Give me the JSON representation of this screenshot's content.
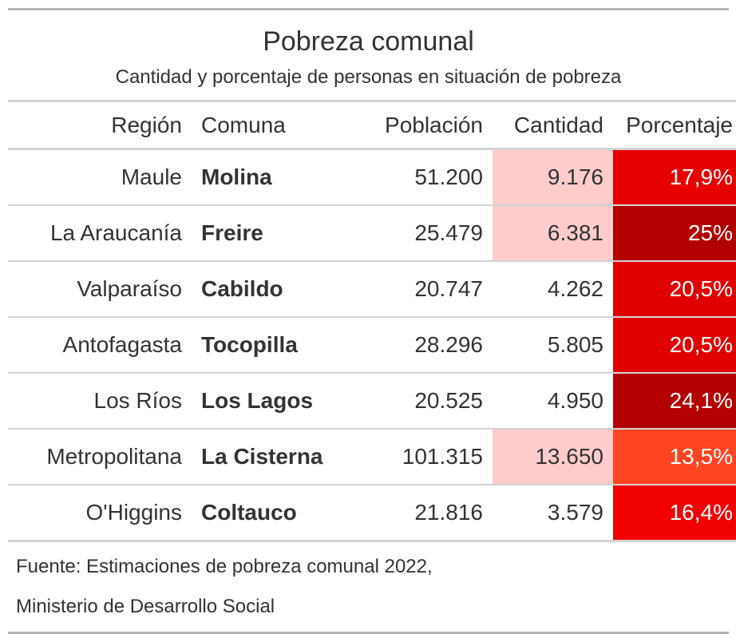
{
  "title": "Pobreza comunal",
  "subtitle": "Cantidad y porcentaje de personas en situación de pobreza",
  "columns": {
    "region": "Región",
    "comuna": "Comuna",
    "poblacion": "Población",
    "cantidad": "Cantidad",
    "porcentaje": "Porcentaje"
  },
  "footer": {
    "line1": "Fuente: Estimaciones de pobreza comunal 2022,",
    "line2": "Ministerio de Desarrollo Social"
  },
  "chart_data": {
    "type": "table",
    "columns": [
      "Región",
      "Comuna",
      "Población",
      "Cantidad",
      "Porcentaje"
    ],
    "rows": [
      {
        "region": "Maule",
        "comuna": "Molina",
        "poblacion": "51.200",
        "cantidad": "9.176",
        "porcentaje": "17,9%",
        "cantidad_bg": "#ffcccc",
        "porcentaje_bg": "#e60000"
      },
      {
        "region": "La Araucanía",
        "comuna": "Freire",
        "poblacion": "25.479",
        "cantidad": "6.381",
        "porcentaje": "25%",
        "cantidad_bg": "#ffcccc",
        "porcentaje_bg": "#b30000"
      },
      {
        "region": "Valparaíso",
        "comuna": "Cabildo",
        "poblacion": "20.747",
        "cantidad": "4.262",
        "porcentaje": "20,5%",
        "cantidad_bg": "#ffffff",
        "porcentaje_bg": "#e00000"
      },
      {
        "region": "Antofagasta",
        "comuna": "Tocopilla",
        "poblacion": "28.296",
        "cantidad": "5.805",
        "porcentaje": "20,5%",
        "cantidad_bg": "#ffffff",
        "porcentaje_bg": "#e00000"
      },
      {
        "region": "Los Ríos",
        "comuna": "Los Lagos",
        "poblacion": "20.525",
        "cantidad": "4.950",
        "porcentaje": "24,1%",
        "cantidad_bg": "#ffffff",
        "porcentaje_bg": "#b30000"
      },
      {
        "region": "Metropolitana",
        "comuna": "La Cisterna",
        "poblacion": "101.315",
        "cantidad": "13.650",
        "porcentaje": "13,5%",
        "cantidad_bg": "#ffcccc",
        "porcentaje_bg": "#ff4422"
      },
      {
        "region": "O'Higgins",
        "comuna": "Coltauco",
        "poblacion": "21.816",
        "cantidad": "3.579",
        "porcentaje": "16,4%",
        "cantidad_bg": "#ffffff",
        "porcentaje_bg": "#f00000"
      }
    ]
  }
}
